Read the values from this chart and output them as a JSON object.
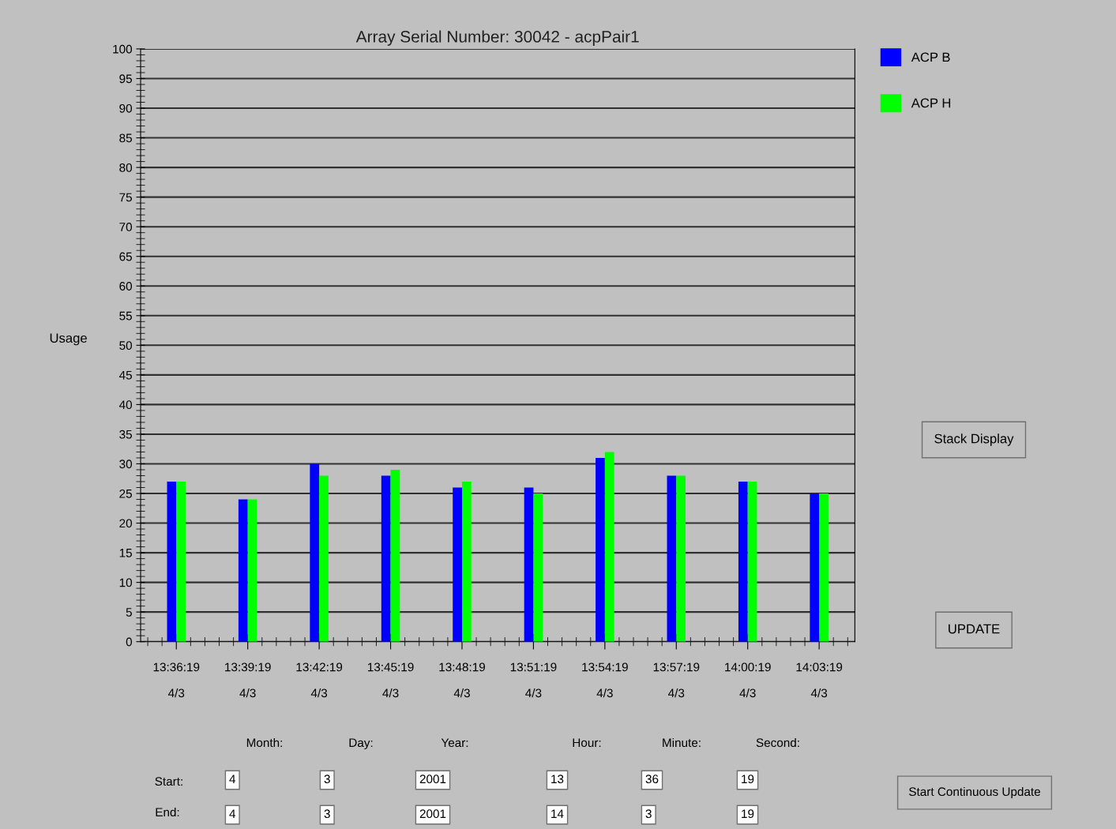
{
  "chart_data": {
    "type": "bar",
    "title": "Array Serial Number: 30042 - acpPair1",
    "ylabel": "Usage",
    "categories": [
      "13:36:19\n\n4/3",
      "13:39:19\n\n4/3",
      "13:42:19\n\n4/3",
      "13:45:19\n\n4/3",
      "13:48:19\n\n4/3",
      "13:51:19\n\n4/3",
      "13:54:19\n\n4/3",
      "13:57:19\n\n4/3",
      "14:00:19\n\n4/3",
      "14:03:19\n\n4/3"
    ],
    "series": [
      {
        "name": "ACP B",
        "color": "#0000ff",
        "values": [
          27,
          24,
          30,
          28,
          26,
          26,
          31,
          28,
          27,
          25
        ]
      },
      {
        "name": "ACP H",
        "color": "#00ff00",
        "values": [
          27,
          24,
          28,
          29,
          27,
          25,
          32,
          28,
          27,
          25
        ]
      }
    ],
    "ylim": [
      0,
      100
    ],
    "yticks": [
      0,
      5,
      10,
      15,
      20,
      25,
      30,
      35,
      40,
      45,
      50,
      55,
      60,
      65,
      70,
      75,
      80,
      85,
      90,
      95,
      100
    ],
    "grid": "y",
    "legend": "top right",
    "annotations": [
      "Stack Display",
      "UPDATE",
      "Start Continuous Update",
      "Month:",
      "Day:",
      "Year:",
      "Hour:",
      "Minute:",
      "Second:",
      "Start:",
      "End:",
      "4",
      "3",
      "2001",
      "13",
      "36",
      "19",
      "4",
      "3",
      "2001",
      "14",
      "3",
      "19"
    ]
  }
}
